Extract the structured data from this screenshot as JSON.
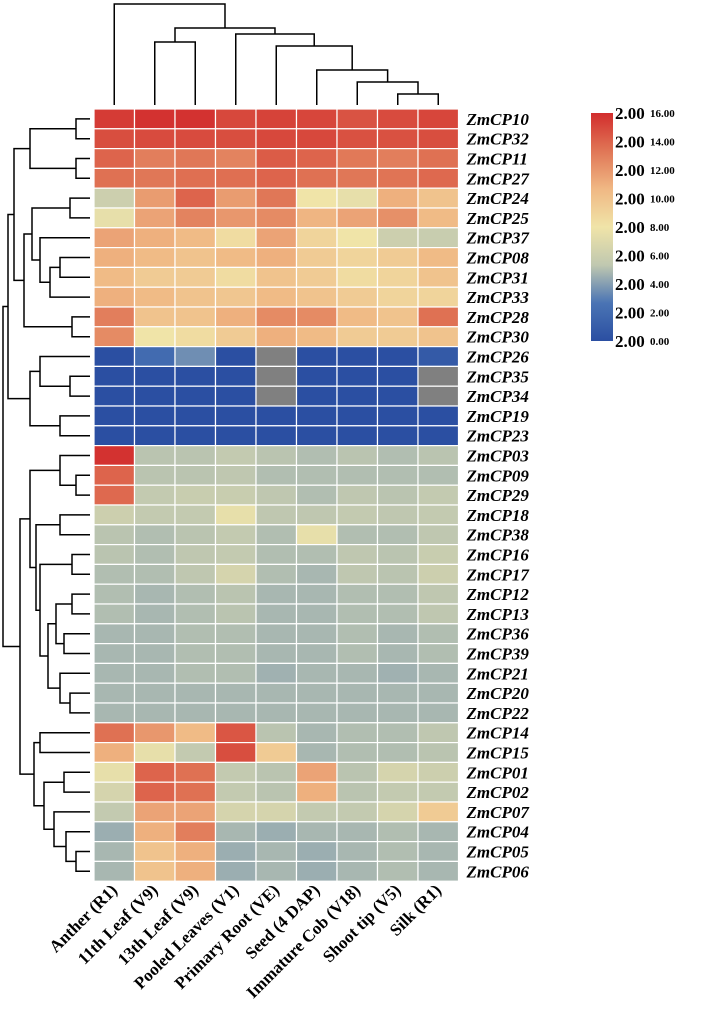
{
  "chart_data": {
    "type": "heatmap",
    "title": "",
    "columns": [
      "Anther (R1)",
      "11th Leaf (V9)",
      "13th Leaf (V9)",
      "Pooled Leaves (V1)",
      "Primary Root (VE)",
      "Seed (4 DAP)",
      "Immature Cob (V18)",
      "Shoot tip (V5)",
      "Silk (R1)"
    ],
    "rows": [
      "ZmCP10",
      "ZmCP32",
      "ZmCP11",
      "ZmCP27",
      "ZmCP24",
      "ZmCP25",
      "ZmCP37",
      "ZmCP08",
      "ZmCP31",
      "ZmCP33",
      "ZmCP28",
      "ZmCP30",
      "ZmCP26",
      "ZmCP35",
      "ZmCP34",
      "ZmCP19",
      "ZmCP23",
      "ZmCP03",
      "ZmCP09",
      "ZmCP29",
      "ZmCP18",
      "ZmCP38",
      "ZmCP16",
      "ZmCP17",
      "ZmCP12",
      "ZmCP13",
      "ZmCP36",
      "ZmCP39",
      "ZmCP21",
      "ZmCP20",
      "ZmCP22",
      "ZmCP14",
      "ZmCP15",
      "ZmCP01",
      "ZmCP02",
      "ZmCP07",
      "ZmCP04",
      "ZmCP05",
      "ZmCP06"
    ],
    "values": [
      [
        15.5,
        15.8,
        15.8,
        15.0,
        15.2,
        15.1,
        14.6,
        14.9,
        15.1
      ],
      [
        14.8,
        14.9,
        14.9,
        14.8,
        15.0,
        15.0,
        14.7,
        14.7,
        14.8
      ],
      [
        14.0,
        13.0,
        13.3,
        12.8,
        14.3,
        14.0,
        13.2,
        13.0,
        13.5
      ],
      [
        13.5,
        13.3,
        13.6,
        13.6,
        14.0,
        13.5,
        13.3,
        13.4,
        13.8
      ],
      [
        6.0,
        11.8,
        14.0,
        11.8,
        13.3,
        8.0,
        7.5,
        11.0,
        10.0
      ],
      [
        7.5,
        11.5,
        12.8,
        12.0,
        12.5,
        10.8,
        11.5,
        12.3,
        10.5
      ],
      [
        11.5,
        11.0,
        10.5,
        8.5,
        11.5,
        9.0,
        8.0,
        6.0,
        5.8
      ],
      [
        11.0,
        10.5,
        10.0,
        10.5,
        11.0,
        9.5,
        9.0,
        9.5,
        10.5
      ],
      [
        10.5,
        9.5,
        9.5,
        8.5,
        10.0,
        9.5,
        8.5,
        9.0,
        10.0
      ],
      [
        11.0,
        10.5,
        10.0,
        9.8,
        10.5,
        10.0,
        9.5,
        9.0,
        9.0
      ],
      [
        13.0,
        10.0,
        10.0,
        11.0,
        12.5,
        12.5,
        10.5,
        10.0,
        13.5
      ],
      [
        12.5,
        8.0,
        8.5,
        9.5,
        11.0,
        10.5,
        9.5,
        9.5,
        10.0
      ],
      [
        0.0,
        2.0,
        3.5,
        0.0,
        "NA",
        0.0,
        0.0,
        0.0,
        0.8
      ],
      [
        0.0,
        0.0,
        0.0,
        0.0,
        "NA",
        0.0,
        0.0,
        0.0,
        "NA"
      ],
      [
        0.0,
        0.0,
        0.0,
        0.0,
        "NA",
        0.0,
        0.0,
        0.0,
        "NA"
      ],
      [
        0.0,
        0.0,
        0.0,
        0.0,
        0.0,
        0.0,
        0.0,
        0.0,
        0.0
      ],
      [
        0.0,
        0.0,
        0.0,
        0.0,
        0.0,
        0.0,
        0.0,
        0.0,
        0.0
      ],
      [
        15.8,
        5.2,
        5.2,
        5.5,
        5.2,
        5.0,
        5.2,
        5.0,
        5.2
      ],
      [
        14.0,
        5.2,
        5.2,
        5.3,
        5.0,
        5.0,
        5.0,
        5.0,
        5.0
      ],
      [
        13.8,
        5.5,
        5.8,
        5.8,
        5.3,
        5.0,
        5.3,
        5.2,
        5.5
      ],
      [
        6.0,
        5.5,
        5.5,
        7.5,
        5.3,
        5.3,
        5.5,
        5.3,
        5.5
      ],
      [
        5.2,
        5.0,
        5.2,
        5.5,
        5.0,
        7.5,
        5.0,
        5.0,
        5.3
      ],
      [
        5.2,
        5.0,
        5.3,
        5.5,
        5.0,
        5.0,
        5.3,
        5.2,
        5.8
      ],
      [
        5.0,
        5.0,
        5.3,
        6.5,
        5.0,
        4.8,
        5.3,
        5.2,
        6.0
      ],
      [
        5.0,
        4.8,
        5.0,
        5.2,
        4.8,
        4.8,
        5.0,
        5.0,
        5.3
      ],
      [
        5.0,
        4.8,
        5.0,
        5.2,
        4.8,
        4.8,
        5.0,
        5.0,
        5.3
      ],
      [
        4.8,
        4.8,
        5.0,
        5.0,
        4.8,
        4.8,
        5.0,
        4.8,
        5.0
      ],
      [
        4.8,
        4.8,
        5.0,
        5.0,
        4.8,
        4.8,
        5.0,
        4.8,
        5.0
      ],
      [
        4.8,
        4.8,
        5.0,
        5.0,
        4.6,
        4.8,
        4.8,
        4.6,
        4.8
      ],
      [
        4.8,
        4.8,
        4.8,
        4.8,
        4.8,
        4.8,
        4.8,
        4.8,
        4.8
      ],
      [
        4.8,
        4.8,
        4.8,
        4.8,
        4.8,
        4.8,
        4.8,
        4.8,
        4.8
      ],
      [
        13.5,
        12.0,
        10.5,
        14.5,
        5.2,
        4.8,
        5.0,
        5.0,
        5.3
      ],
      [
        11.0,
        7.5,
        5.5,
        14.8,
        9.5,
        4.8,
        5.0,
        5.0,
        5.2
      ],
      [
        7.5,
        14.0,
        13.5,
        5.5,
        5.2,
        11.5,
        5.2,
        6.5,
        6.0
      ],
      [
        6.5,
        14.0,
        13.5,
        5.5,
        5.2,
        11.0,
        5.2,
        5.5,
        5.5
      ],
      [
        5.5,
        11.5,
        11.5,
        6.5,
        6.5,
        5.5,
        5.5,
        6.5,
        9.5
      ],
      [
        4.5,
        11.0,
        13.0,
        4.8,
        4.5,
        4.8,
        4.8,
        5.0,
        4.8
      ],
      [
        4.8,
        10.0,
        11.0,
        4.5,
        4.8,
        4.5,
        4.8,
        5.0,
        4.8
      ],
      [
        4.8,
        10.0,
        11.0,
        4.5,
        4.8,
        4.5,
        4.8,
        5.0,
        4.8
      ]
    ],
    "color_scale": {
      "min": 0,
      "max": 16,
      "stops": [
        "#2b4fa2",
        "#4a74b4",
        "#c0c8b0",
        "#f0e4a8",
        "#f0b884",
        "#e07656",
        "#d22d2d"
      ],
      "na_color": "#808080"
    },
    "legend": {
      "tick_values": [
        "0.00",
        "2.00",
        "4.00",
        "6.00",
        "8.00",
        "10.00",
        "12.00",
        "14.00",
        "16.00"
      ],
      "labels": [
        "2.00",
        "2.00",
        "2.00",
        "2.00",
        "2.00",
        "2.00",
        "2.00",
        "2.00",
        "2.00"
      ],
      "placement": "top-right"
    },
    "dendrogram_rows": true,
    "dendrogram_columns": true
  }
}
